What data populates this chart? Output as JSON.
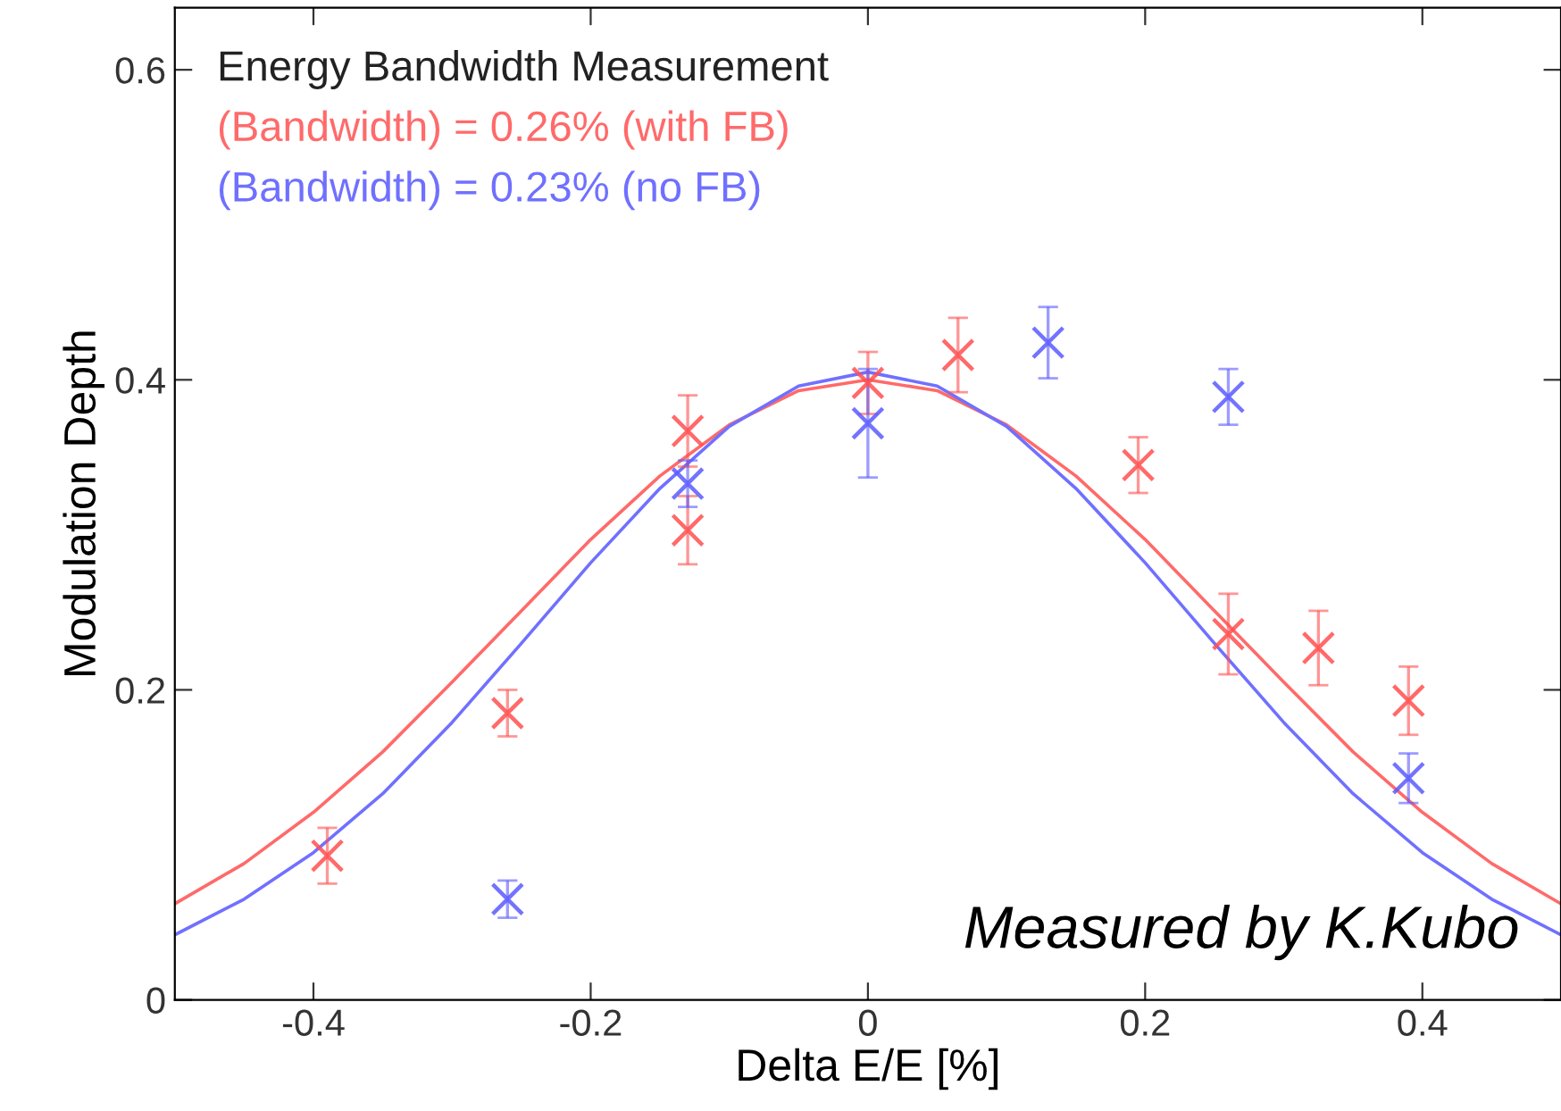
{
  "chart_data": {
    "type": "scatter",
    "xlabel": "Delta E/E [%]",
    "ylabel": "Modulation Depth",
    "legend_title": "Energy Bandwidth Measurement",
    "legend": "top left",
    "annotations": [
      "Measured by K.Kubo"
    ],
    "xlim": [
      -0.5,
      0.5
    ],
    "ylim": [
      0,
      0.64
    ],
    "xticks": [
      -0.4,
      -0.2,
      0,
      0.2,
      0.4
    ],
    "yticks": [
      0,
      0.2,
      0.4,
      0.6
    ],
    "grid": false,
    "series": [
      {
        "color": "#ff5050",
        "marker": "cross",
        "x": [
          -0.39,
          -0.26,
          -0.13,
          -0.13,
          0,
          0.065,
          0.195,
          0.26,
          0.325,
          0.39
        ],
        "values": [
          0.093,
          0.185,
          0.367,
          0.303,
          0.398,
          0.416,
          0.345,
          0.236,
          0.227,
          0.193
        ],
        "errors": [
          0.018,
          0.015,
          0.023,
          0.022,
          0.02,
          0.024,
          0.018,
          0.026,
          0.024,
          0.022
        ]
      },
      {
        "color": "#5a5aff",
        "marker": "cross",
        "x": [
          -0.26,
          -0.13,
          0,
          0.13,
          0.26,
          0.39
        ],
        "values": [
          0.065,
          0.333,
          0.372,
          0.424,
          0.389,
          0.143
        ],
        "errors": [
          0.012,
          0.015,
          0.035,
          0.023,
          0.018,
          0.016
        ]
      },
      {
        "type": "line",
        "name": "(Bandwidth) = 0.26% (with FB)",
        "color": "#ff6a6a",
        "line_style": "solid",
        "x": [
          -0.5,
          -0.45,
          -0.4,
          -0.35,
          -0.3,
          -0.25,
          -0.2,
          -0.15,
          -0.1,
          -0.05,
          0,
          0.05,
          0.1,
          0.15,
          0.2,
          0.25,
          0.3,
          0.35,
          0.4,
          0.45,
          0.5
        ],
        "values": [
          0.062,
          0.088,
          0.121,
          0.16,
          0.205,
          0.251,
          0.297,
          0.338,
          0.371,
          0.393,
          0.4,
          0.393,
          0.371,
          0.338,
          0.297,
          0.251,
          0.205,
          0.16,
          0.121,
          0.088,
          0.062
        ]
      },
      {
        "type": "line",
        "name": "(Bandwidth) = 0.23% (no FB)",
        "color": "#7070ff",
        "line_style": "solid",
        "x": [
          -0.5,
          -0.45,
          -0.4,
          -0.35,
          -0.3,
          -0.25,
          -0.2,
          -0.15,
          -0.1,
          -0.05,
          0,
          0.05,
          0.1,
          0.15,
          0.2,
          0.25,
          0.3,
          0.35,
          0.4,
          0.45,
          0.5
        ],
        "values": [
          0.042,
          0.065,
          0.095,
          0.133,
          0.179,
          0.23,
          0.282,
          0.33,
          0.37,
          0.396,
          0.405,
          0.396,
          0.37,
          0.33,
          0.282,
          0.23,
          0.179,
          0.133,
          0.095,
          0.065,
          0.042
        ]
      }
    ]
  }
}
